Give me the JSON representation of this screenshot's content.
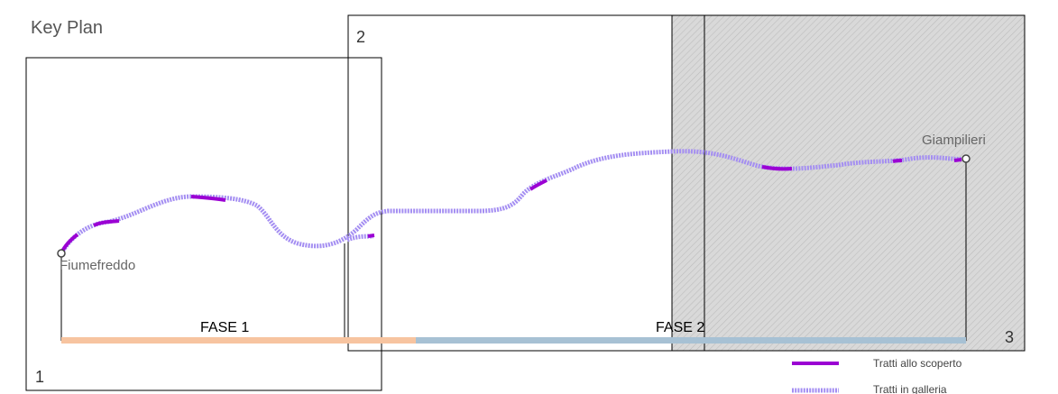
{
  "title": "Key Plan",
  "sheets": [
    "1",
    "2",
    "3"
  ],
  "endpoints": {
    "start": "Fiumefreddo",
    "end": "Giampilieri"
  },
  "phases": [
    "FASE 1",
    "FASE 2"
  ],
  "legend": {
    "open": "Tratti allo scoperto",
    "tunnel": "Tratti in galleria"
  },
  "colors": {
    "open_line": "#9b00d3",
    "tunnel_line": "#a48ef2",
    "phase1_bar": "#f7c4a0",
    "phase2_bar": "#a7c1d4",
    "hatch_fill": "#d6d6d6",
    "frame": "#000000"
  }
}
